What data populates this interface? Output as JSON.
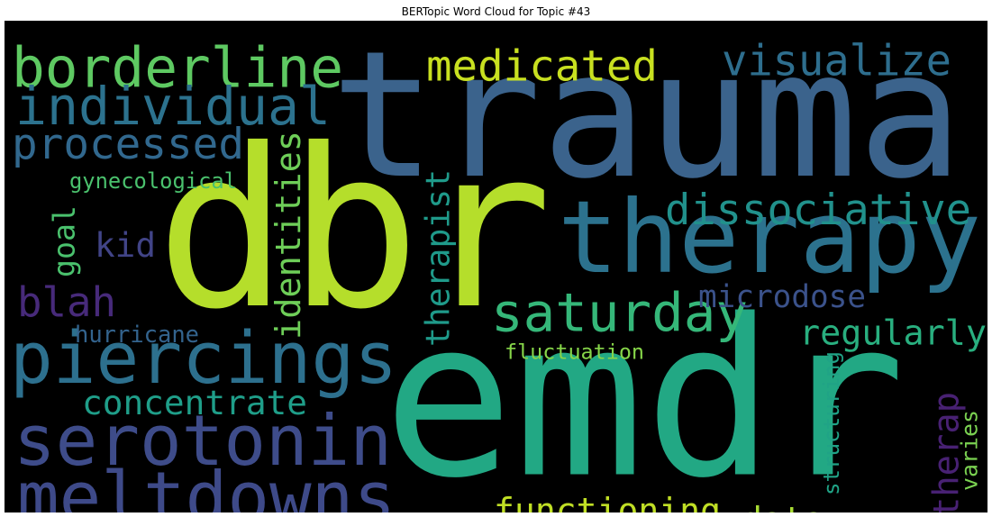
{
  "chart_data": {
    "type": "wordcloud",
    "title": "BERTopic Word Cloud for Topic #43",
    "background": "#000000",
    "words": [
      {
        "text": "trauma",
        "color": "#3b638c",
        "orientation": "horizontal"
      },
      {
        "text": "dbr",
        "color": "#b5de2b",
        "orientation": "horizontal"
      },
      {
        "text": "emdr",
        "color": "#22a884",
        "orientation": "horizontal"
      },
      {
        "text": "therapy",
        "color": "#2c728e",
        "orientation": "horizontal"
      },
      {
        "text": "piercings",
        "color": "#2d708e",
        "orientation": "horizontal"
      },
      {
        "text": "serotonin",
        "color": "#3e4c8a",
        "orientation": "horizontal"
      },
      {
        "text": "meltdowns",
        "color": "#3e4a89",
        "orientation": "horizontal"
      },
      {
        "text": "borderline",
        "color": "#5ec962",
        "orientation": "horizontal"
      },
      {
        "text": "individual",
        "color": "#2c728e",
        "orientation": "horizontal"
      },
      {
        "text": "processed",
        "color": "#31688e",
        "orientation": "horizontal"
      },
      {
        "text": "saturday",
        "color": "#35b779",
        "orientation": "horizontal"
      },
      {
        "text": "dissociative",
        "color": "#21918c",
        "orientation": "horizontal"
      },
      {
        "text": "medicated",
        "color": "#c8e020",
        "orientation": "horizontal"
      },
      {
        "text": "visualize",
        "color": "#2e6e8e",
        "orientation": "horizontal"
      },
      {
        "text": "concentrate",
        "color": "#1f9e89",
        "orientation": "horizontal"
      },
      {
        "text": "functioning",
        "color": "#c0df25",
        "orientation": "horizontal"
      },
      {
        "text": "regularly",
        "color": "#29af7f",
        "orientation": "horizontal"
      },
      {
        "text": "identities",
        "color": "#6ece58",
        "orientation": "vertical"
      },
      {
        "text": "therapist",
        "color": "#1f9a8a",
        "orientation": "vertical"
      },
      {
        "text": "blah",
        "color": "#472a7a",
        "orientation": "horizontal"
      },
      {
        "text": "data",
        "color": "#a8db34",
        "orientation": "horizontal"
      },
      {
        "text": "microdose",
        "color": "#3b528b",
        "orientation": "horizontal"
      },
      {
        "text": "therap",
        "color": "#482173",
        "orientation": "vertical"
      },
      {
        "text": "goal",
        "color": "#4ac16d",
        "orientation": "vertical"
      },
      {
        "text": "kid",
        "color": "#414487",
        "orientation": "horizontal"
      },
      {
        "text": "gynecological",
        "color": "#4ac16d",
        "orientation": "horizontal"
      },
      {
        "text": "fluctuation",
        "color": "#86d549",
        "orientation": "horizontal"
      },
      {
        "text": "structuring",
        "color": "#20a386",
        "orientation": "vertical"
      },
      {
        "text": "varies",
        "color": "#7ad151",
        "orientation": "vertical"
      },
      {
        "text": "hurricane",
        "color": "#33638d",
        "orientation": "horizontal"
      }
    ]
  }
}
